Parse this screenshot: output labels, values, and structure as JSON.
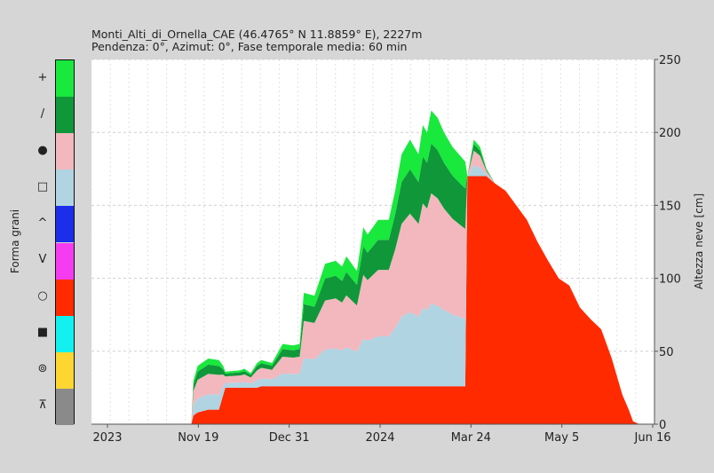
{
  "chart_data": {
    "type": "area",
    "title": "Monti_Alti_di_Ornella_CAE (46.4765° N 11.8859° E), 2227m",
    "subtitle": "Pendenza: 0°, Azimut: 0°, Fase temporale media: 60 min",
    "ylabel_left": "Forma grani",
    "ylabel_right": "Altezza neve [cm]",
    "ylim": [
      0,
      250
    ],
    "yticks": [
      0,
      50,
      100,
      150,
      200,
      250
    ],
    "xtick_labels": [
      "2023",
      "Nov 19",
      "Dec 31",
      "2024",
      "Mar 24",
      "May 5",
      "Jun 16"
    ],
    "grid": true,
    "legend": [
      {
        "symbol": "+",
        "color": "#19e83d"
      },
      {
        "symbol": "/",
        "color": "#10973a"
      },
      {
        "symbol": "●",
        "color": "#f2b8be"
      },
      {
        "symbol": "□",
        "color": "#b0d4e2"
      },
      {
        "symbol": "^",
        "color": "#1b2eea"
      },
      {
        "symbol": "V",
        "color": "#f63cf0"
      },
      {
        "symbol": "○",
        "color": "#ff2a00"
      },
      {
        "symbol": "■",
        "color": "#12f1f0"
      },
      {
        "symbol": "⊚",
        "color": "#fdd631"
      },
      {
        "symbol": "⊼",
        "color": "#8a8a8a"
      }
    ],
    "snow_height": {
      "days": [
        0,
        47,
        48,
        50,
        55,
        60,
        62,
        63,
        70,
        72,
        75,
        78,
        80,
        85,
        90,
        95,
        98,
        100,
        105,
        110,
        115,
        118,
        120,
        125,
        128,
        130,
        135,
        140,
        143,
        146,
        150,
        154,
        156,
        158,
        160,
        163,
        166,
        170,
        176,
        177,
        180,
        183,
        186,
        190,
        195,
        200,
        205,
        210,
        215,
        220,
        225,
        230,
        235,
        240,
        245,
        248,
        250,
        253,
        255,
        258
      ],
      "total": [
        0,
        0,
        30,
        40,
        45,
        44,
        40,
        36,
        37,
        38,
        35,
        42,
        44,
        42,
        55,
        54,
        55,
        90,
        88,
        110,
        112,
        108,
        115,
        105,
        135,
        130,
        140,
        140,
        160,
        185,
        195,
        185,
        205,
        200,
        215,
        210,
        200,
        190,
        180,
        170,
        195,
        190,
        175,
        165,
        160,
        150,
        140,
        125,
        112,
        100,
        95,
        80,
        72,
        65,
        45,
        30,
        20,
        10,
        2,
        0
      ],
      "base_red": [
        0,
        0,
        6,
        8,
        10,
        10,
        20,
        25,
        25,
        25,
        25,
        25,
        26,
        26,
        26,
        26,
        26,
        26,
        26,
        26,
        26,
        26,
        26,
        26,
        26,
        26,
        26,
        26,
        26,
        26,
        26,
        26,
        26,
        26,
        26,
        26,
        26,
        26,
        26,
        170,
        170,
        170,
        170,
        165,
        160,
        150,
        140,
        125,
        112,
        100,
        95,
        80,
        72,
        65,
        45,
        30,
        20,
        10,
        2,
        0
      ]
    }
  }
}
